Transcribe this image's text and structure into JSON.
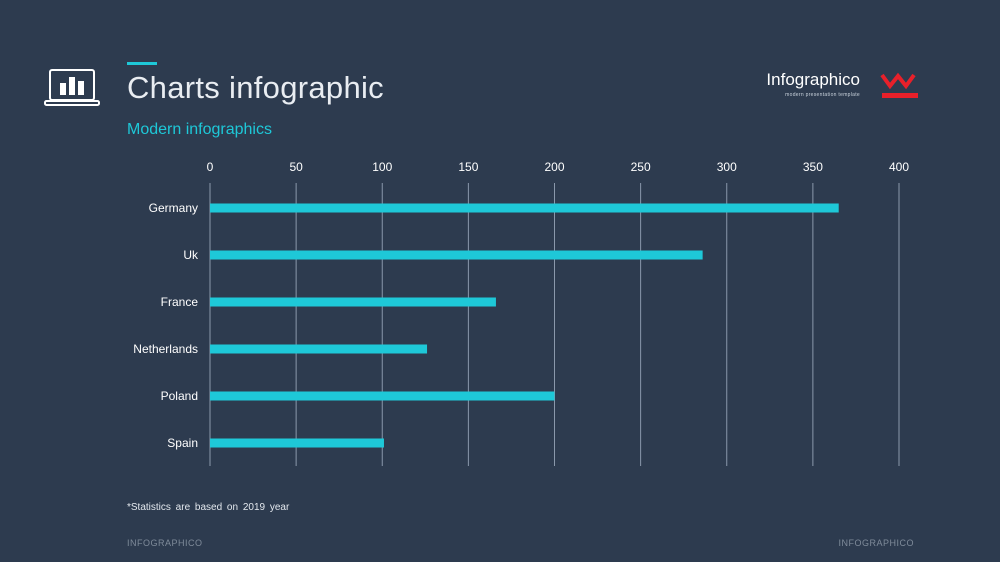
{
  "header": {
    "title": "Charts infographic",
    "subtitle": "Modern infographics",
    "icon": "laptop-chart-icon"
  },
  "brand": {
    "name": "Infographico",
    "tagline": "modern presentation template",
    "logo_icon": "w-logo-icon",
    "logo_color": "#e8202a"
  },
  "footnote": "*Statistics are based on 2019 year",
  "footer": {
    "left": "INFOGRAPHICO",
    "right": "INFOGRAPHICO"
  },
  "colors": {
    "background": "#2d3b4f",
    "bar": "#1ec8d8",
    "accent": "#1ec8d8",
    "grid": "#8a98ab"
  },
  "chart_data": {
    "type": "bar",
    "orientation": "horizontal",
    "categories": [
      "Germany",
      "Uk",
      "France",
      "Netherlands",
      "Poland",
      "Spain"
    ],
    "values": [
      365,
      286,
      166,
      126,
      200,
      101
    ],
    "xlim": [
      0,
      400
    ],
    "xticks": [
      0,
      50,
      100,
      150,
      200,
      250,
      300,
      350,
      400
    ],
    "grid": true,
    "axis_position": "top"
  }
}
